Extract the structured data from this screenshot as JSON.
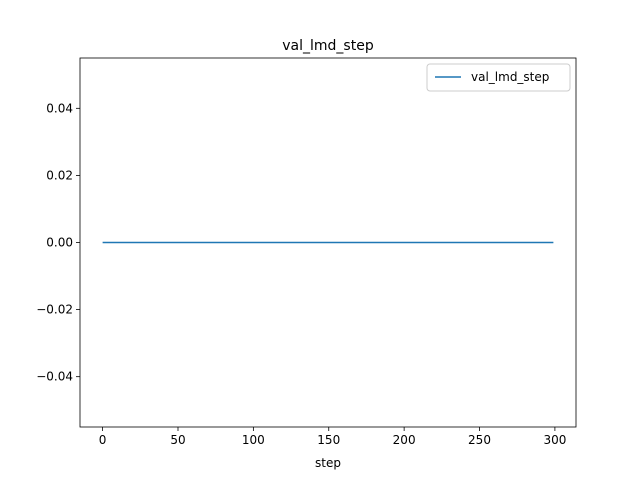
{
  "chart_data": {
    "type": "line",
    "title": "val_lmd_step",
    "xlabel": "step",
    "ylabel": "",
    "xlim": [
      -15,
      314
    ],
    "ylim": [
      -0.055,
      0.055
    ],
    "xticks": [
      0,
      50,
      100,
      150,
      200,
      250,
      300
    ],
    "xtick_labels": [
      "0",
      "50",
      "100",
      "150",
      "200",
      "250",
      "300"
    ],
    "yticks": [
      0.04,
      0.02,
      0.0,
      -0.02,
      -0.04
    ],
    "ytick_labels": [
      "0.04",
      "0.02",
      "0.00",
      "−0.02",
      "−0.04"
    ],
    "grid": false,
    "legend_position": "upper right",
    "series": [
      {
        "name": "val_lmd_step",
        "color": "#1f77b4",
        "x": [
          0,
          299
        ],
        "y": [
          0.0,
          0.0
        ]
      }
    ]
  }
}
